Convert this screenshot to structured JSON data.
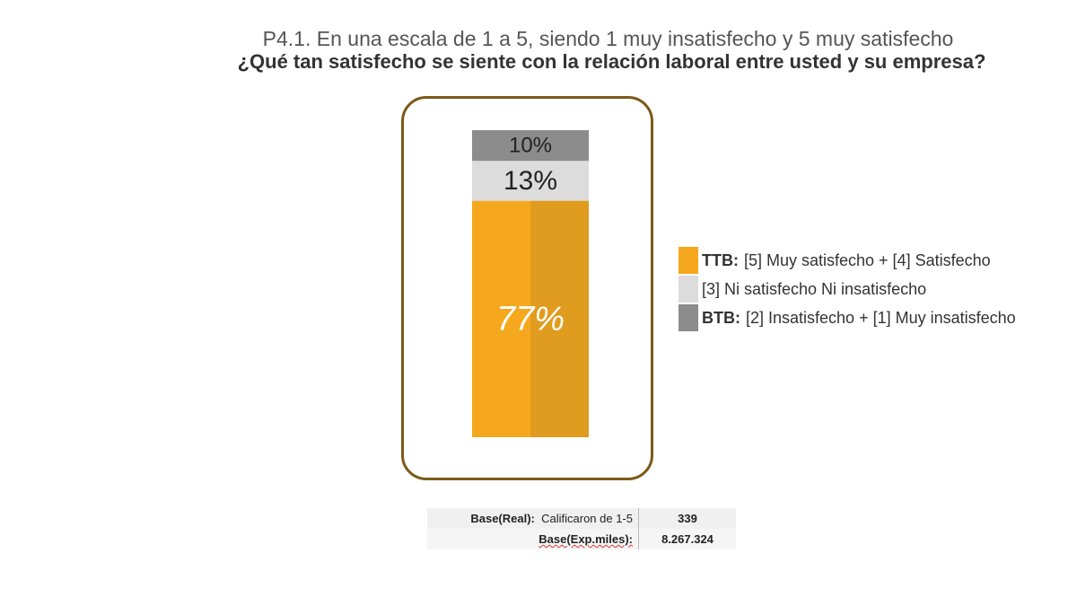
{
  "subtitle": "P4.1. En una escala de 1 a 5, siendo 1 muy insatisfecho y 5 muy satisfecho",
  "title": "¿Qué tan satisfecho se siente con la relación laboral entre usted y su empresa?",
  "chart_data": {
    "type": "bar",
    "stacked": true,
    "categories": [
      ""
    ],
    "series": [
      {
        "name": "TTB: [5] Muy satisfecho + [4] Satisfecho",
        "values": [
          77
        ],
        "label": "77%",
        "color": "#f5a81e",
        "shade": "#e09c1e",
        "label_color": "#ffffff"
      },
      {
        "name": "[3] Ni satisfecho Ni insatisfecho",
        "values": [
          13
        ],
        "label": "13%",
        "color": "#dcdcdc",
        "label_color": "#222222"
      },
      {
        "name": "BTB: [2] Insatisfecho + [1] Muy insatisfecho",
        "values": [
          10
        ],
        "label": "10%",
        "color": "#8c8c8c",
        "label_color": "#222222"
      }
    ],
    "ylim": [
      0,
      100
    ],
    "legend_position": "right",
    "frame_color": "#7a5a17"
  },
  "legend": [
    {
      "prefix": "TTB:",
      "text": "[5] Muy satisfecho +  [4] Satisfecho",
      "color": "#f5a81e"
    },
    {
      "prefix": "",
      "text": "[3] Ni satisfecho Ni insatisfecho",
      "color": "#dcdcdc"
    },
    {
      "prefix": "BTB:",
      "text": " [2] Insatisfecho +  [1] Muy insatisfecho",
      "color": "#8c8c8c"
    }
  ],
  "base": {
    "real_label": "Base(Real):",
    "real_desc": "Calificaron de 1-5",
    "real_value": "339",
    "exp_label": "Base(Exp.miles):",
    "exp_value": "8.267.324"
  }
}
